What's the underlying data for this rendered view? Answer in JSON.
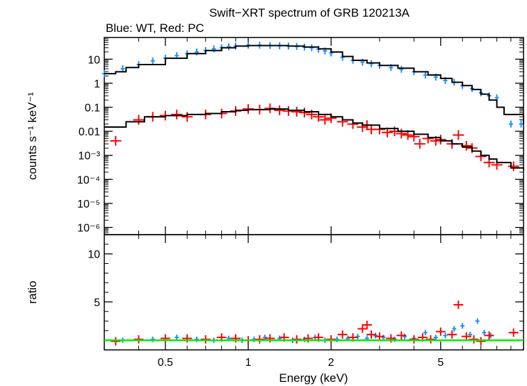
{
  "title": "Swift−XRT spectrum of GRB 120213A",
  "subtitle": "Blue: WT, Red: PC",
  "colors": {
    "wt": "#1e90ff",
    "pc": "#ff0000",
    "model": "#000000",
    "ratio_line": "#00ee00"
  },
  "chart_data": [
    {
      "type": "scatter",
      "panel": "spectrum",
      "ylabel": "counts s⁻¹ keV⁻¹",
      "x_scale": "log",
      "y_scale": "log",
      "xlim": [
        0.3,
        10
      ],
      "ylim": [
        5e-07,
        80
      ],
      "y_ticks": [
        {
          "value": 10,
          "label": "10"
        },
        {
          "value": 1,
          "label": "1"
        },
        {
          "value": 0.1,
          "label": "0.1"
        },
        {
          "value": 0.01,
          "label": "0.01"
        },
        {
          "value": 0.001,
          "label": "10⁻³"
        },
        {
          "value": 0.0001,
          "label": "10⁻⁴"
        },
        {
          "value": 1e-05,
          "label": "10⁻⁵"
        },
        {
          "value": 1e-06,
          "label": "10⁻⁶"
        }
      ],
      "series": [
        {
          "key": "wt",
          "x": [
            0.3,
            0.35,
            0.4,
            0.45,
            0.5,
            0.55,
            0.6,
            0.65,
            0.7,
            0.75,
            0.8,
            0.85,
            0.9,
            1.0,
            1.1,
            1.2,
            1.3,
            1.4,
            1.5,
            1.6,
            1.7,
            1.8,
            1.9,
            2.0,
            2.2,
            2.4,
            2.6,
            2.8,
            3.0,
            3.3,
            3.6,
            4.0,
            4.4,
            4.8,
            5.2,
            5.6,
            6.0,
            6.5,
            7.0,
            7.5,
            8.0,
            9.0,
            9.8
          ],
          "y": [
            2.5,
            4,
            6,
            8.5,
            11,
            14,
            17,
            20,
            23,
            27,
            30,
            33,
            35,
            38,
            38,
            37,
            36,
            35,
            34,
            32,
            30,
            26,
            22,
            18,
            12,
            9,
            7.5,
            6.5,
            5.5,
            4.5,
            3.8,
            3,
            2.2,
            1.8,
            1.3,
            1.1,
            0.8,
            0.6,
            0.4,
            0.3,
            0.25,
            0.02,
            0.02
          ],
          "model": [
            [
              0.3,
              2.5
            ],
            [
              0.33,
              3
            ],
            [
              0.36,
              4.5
            ],
            [
              0.4,
              6
            ],
            [
              0.5,
              11
            ],
            [
              0.6,
              17
            ],
            [
              0.7,
              23
            ],
            [
              0.8,
              30
            ],
            [
              0.9,
              35
            ],
            [
              1.0,
              37
            ],
            [
              1.2,
              37
            ],
            [
              1.4,
              35
            ],
            [
              1.6,
              32
            ],
            [
              1.8,
              27
            ],
            [
              2.0,
              20
            ],
            [
              2.2,
              13
            ],
            [
              2.4,
              9
            ],
            [
              2.7,
              7
            ],
            [
              3.0,
              5.5
            ],
            [
              3.5,
              4.2
            ],
            [
              4.0,
              3
            ],
            [
              4.5,
              2.2
            ],
            [
              5.0,
              1.6
            ],
            [
              5.5,
              1.1
            ],
            [
              6.0,
              0.8
            ],
            [
              6.5,
              0.55
            ],
            [
              7.0,
              0.35
            ],
            [
              7.5,
              0.2
            ],
            [
              8.0,
              0.1
            ],
            [
              8.5,
              0.05
            ],
            [
              10,
              0.02
            ]
          ]
        },
        {
          "key": "pc",
          "x": [
            0.33,
            0.4,
            0.45,
            0.5,
            0.55,
            0.6,
            0.7,
            0.8,
            0.9,
            1.0,
            1.1,
            1.2,
            1.3,
            1.4,
            1.5,
            1.6,
            1.7,
            1.8,
            1.9,
            2.0,
            2.2,
            2.4,
            2.6,
            2.7,
            2.8,
            3.0,
            3.2,
            3.4,
            3.6,
            3.8,
            4.0,
            4.2,
            4.5,
            4.8,
            5.0,
            5.5,
            5.8,
            6.2,
            6.5,
            7.0,
            7.5,
            8.0,
            9.2
          ],
          "y": [
            0.004,
            0.03,
            0.04,
            0.045,
            0.05,
            0.04,
            0.05,
            0.055,
            0.07,
            0.085,
            0.08,
            0.09,
            0.075,
            0.07,
            0.065,
            0.06,
            0.05,
            0.04,
            0.03,
            0.035,
            0.025,
            0.02,
            0.015,
            0.018,
            0.012,
            0.012,
            0.009,
            0.01,
            0.008,
            0.007,
            0.006,
            0.003,
            0.005,
            0.004,
            0.0045,
            0.003,
            0.007,
            0.0025,
            0.002,
            0.0009,
            0.0005,
            0.0004,
            0.00035
          ],
          "model": [
            [
              0.3,
              0.015
            ],
            [
              0.36,
              0.025
            ],
            [
              0.42,
              0.04
            ],
            [
              0.5,
              0.045
            ],
            [
              0.6,
              0.05
            ],
            [
              0.7,
              0.055
            ],
            [
              0.8,
              0.065
            ],
            [
              0.9,
              0.075
            ],
            [
              1.0,
              0.08
            ],
            [
              1.2,
              0.085
            ],
            [
              1.4,
              0.075
            ],
            [
              1.6,
              0.065
            ],
            [
              1.8,
              0.05
            ],
            [
              2.0,
              0.04
            ],
            [
              2.2,
              0.03
            ],
            [
              2.4,
              0.022
            ],
            [
              2.6,
              0.018
            ],
            [
              3.0,
              0.013
            ],
            [
              3.5,
              0.01
            ],
            [
              4.0,
              0.0075
            ],
            [
              4.5,
              0.0055
            ],
            [
              5.0,
              0.004
            ],
            [
              5.5,
              0.003
            ],
            [
              6.0,
              0.0022
            ],
            [
              6.5,
              0.0015
            ],
            [
              7.0,
              0.001
            ],
            [
              7.5,
              0.0007
            ],
            [
              8.0,
              0.0005
            ],
            [
              9.0,
              0.0003
            ],
            [
              10,
              0.00025
            ]
          ]
        }
      ]
    },
    {
      "type": "scatter",
      "panel": "ratio",
      "ylabel": "ratio",
      "xlabel": "Energy (keV)",
      "x_scale": "log",
      "xlim": [
        0.3,
        10
      ],
      "ylim": [
        0,
        12
      ],
      "x_ticks": [
        {
          "value": 0.5,
          "label": "0.5"
        },
        {
          "value": 1,
          "label": "1"
        },
        {
          "value": 2,
          "label": "2"
        },
        {
          "value": 5,
          "label": "5"
        }
      ],
      "y_ticks": [
        {
          "value": 5,
          "label": "5"
        },
        {
          "value": 10,
          "label": "10"
        }
      ],
      "reference_line": 1,
      "series": [
        {
          "key": "wt",
          "x": [
            0.35,
            0.45,
            0.55,
            0.65,
            0.75,
            0.85,
            0.95,
            1.05,
            1.15,
            1.3,
            1.45,
            1.6,
            1.75,
            1.9,
            2.1,
            2.3,
            2.5,
            2.7,
            2.9,
            3.1,
            3.4,
            3.7,
            4.0,
            4.4,
            4.8,
            5.2,
            5.6,
            6.0,
            6.4,
            6.8,
            7.2,
            7.6
          ],
          "y": [
            1,
            1.1,
            1.3,
            1.1,
            1,
            1.2,
            1,
            1.1,
            1.3,
            1.2,
            1,
            1.1,
            1.3,
            1,
            1.1,
            1.2,
            1.4,
            1.2,
            1.5,
            1.3,
            1.1,
            1.4,
            1.2,
            1.8,
            1.3,
            1.5,
            2.2,
            2.5,
            1.6,
            3,
            1.8,
            1.5
          ]
        },
        {
          "key": "pc",
          "x": [
            0.33,
            0.4,
            0.5,
            0.6,
            0.7,
            0.8,
            0.9,
            1.0,
            1.1,
            1.2,
            1.35,
            1.5,
            1.65,
            1.8,
            2.0,
            2.2,
            2.4,
            2.6,
            2.7,
            2.8,
            3.0,
            3.3,
            3.6,
            4.0,
            4.3,
            4.6,
            5.0,
            5.5,
            5.8,
            6.2,
            6.6,
            7.0,
            7.5,
            9.2
          ],
          "y": [
            0.9,
            1.1,
            1.2,
            1.2,
            1.1,
            1.3,
            1.2,
            1.0,
            1.1,
            1.2,
            1.3,
            1.1,
            1.2,
            1.3,
            1.1,
            1.6,
            1.3,
            2.2,
            2.6,
            1.6,
            1.4,
            1.2,
            1.5,
            1.1,
            1.3,
            1.1,
            1.9,
            1.6,
            4.7,
            1.4,
            1.1,
            0.9,
            1.5,
            1.8
          ]
        }
      ]
    }
  ]
}
